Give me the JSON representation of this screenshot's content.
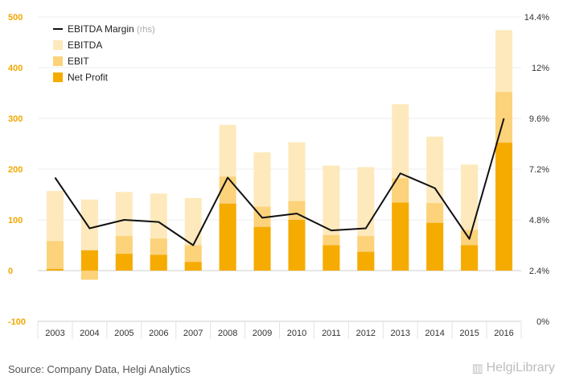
{
  "chart_data": {
    "type": "bar",
    "title": "",
    "categories": [
      "2003",
      "2004",
      "2005",
      "2006",
      "2007",
      "2008",
      "2009",
      "2010",
      "2011",
      "2012",
      "2013",
      "2014",
      "2015",
      "2016"
    ],
    "series": [
      {
        "name": "EBITDA",
        "kind": "bar",
        "color": "#fde9bb",
        "values": [
          157,
          140,
          155,
          152,
          143,
          287,
          233,
          253,
          207,
          204,
          328,
          264,
          209,
          474
        ]
      },
      {
        "name": "EBIT",
        "kind": "bar",
        "color": "#fcd27a",
        "values": [
          58,
          -18,
          68,
          63,
          50,
          185,
          126,
          137,
          70,
          68,
          182,
          133,
          80,
          352
        ]
      },
      {
        "name": "Net Profit",
        "kind": "bar",
        "color": "#f6ab00",
        "values": [
          3,
          40,
          33,
          31,
          17,
          132,
          86,
          100,
          50,
          37,
          134,
          94,
          50,
          252
        ]
      },
      {
        "name": "EBITDA Margin",
        "kind": "line",
        "axis": "right",
        "color": "#111111",
        "values": [
          6.8,
          4.4,
          4.8,
          4.7,
          3.6,
          6.8,
          4.9,
          5.1,
          4.3,
          4.4,
          7.0,
          6.3,
          3.9,
          9.6
        ]
      }
    ],
    "ylim": [
      -100,
      500
    ],
    "yticks": [
      -100,
      0,
      100,
      200,
      300,
      400,
      500
    ],
    "y2lim": [
      0,
      14.4
    ],
    "y2ticks": [
      0,
      2.4,
      4.8,
      7.2,
      9.6,
      12,
      14.4
    ],
    "y2ticklabels": [
      "0%",
      "2.4%",
      "4.8%",
      "7.2%",
      "9.6%",
      "12%",
      "14.4%"
    ],
    "legend": {
      "position": "top-left",
      "line_label": "EBITDA Margin",
      "line_note": "(rhs)",
      "items": [
        "EBITDA",
        "EBIT",
        "Net Profit"
      ]
    },
    "xlabel": "",
    "ylabel": "",
    "grid": true
  },
  "footer": {
    "source": "Source: Company Data, Helgi Analytics",
    "brand": "HelgiLibrary"
  }
}
